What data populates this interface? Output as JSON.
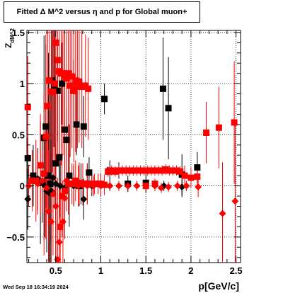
{
  "chart_data": {
    "type": "scatter",
    "title": "Fitted Δ M^2 versus η and p for Global muon+",
    "xlabel": "p[GeV/c]",
    "ylabel": "Z_{dM^2}",
    "xlim": [
      0.18,
      2.55
    ],
    "ylim": [
      -0.75,
      1.52
    ],
    "x_ticks": [
      0.5,
      1,
      1.5,
      2,
      2.5
    ],
    "x_tick_labels": [
      "0.5",
      "1",
      "1.5",
      "2",
      "2.5"
    ],
    "y_ticks": [
      -0.5,
      0,
      0.5,
      1,
      1.5
    ],
    "y_tick_labels": [
      "−0.5",
      "0",
      "0.5",
      "1",
      "1.5"
    ],
    "grid": true,
    "legend": "none",
    "series": [
      {
        "color": "#000000",
        "marker": "square",
        "points": [
          {
            "x": 0.19,
            "y": 0.27,
            "ey": 0.2
          },
          {
            "x": 0.25,
            "y": 0.1,
            "ey": 0.3
          },
          {
            "x": 0.33,
            "y": 0.03,
            "ey": 0.6
          },
          {
            "x": 0.37,
            "y": 0.47,
            "ey": 1.0
          },
          {
            "x": 0.39,
            "y": 0.58,
            "ey": 0.8
          },
          {
            "x": 0.42,
            "y": 0.1,
            "ey": 1.2
          },
          {
            "x": 0.44,
            "y": 0.02,
            "ey": 0.9
          },
          {
            "x": 0.46,
            "y": 1.03,
            "ey": 0.9
          },
          {
            "x": 0.48,
            "y": 0.98,
            "ey": 0.6
          },
          {
            "x": 0.5,
            "y": 0.22,
            "ey": 1.0
          },
          {
            "x": 0.52,
            "y": 0.93,
            "ey": 0.5
          },
          {
            "x": 0.54,
            "y": 0.28,
            "ey": 0.6
          },
          {
            "x": 0.57,
            "y": 1.0,
            "ey": 0.4
          },
          {
            "x": 0.6,
            "y": 0.55,
            "ey": 0.4
          },
          {
            "x": 0.62,
            "y": 0.45,
            "ey": 0.3
          },
          {
            "x": 0.65,
            "y": 0.1,
            "ey": 0.5
          },
          {
            "x": 0.7,
            "y": 0.93,
            "ey": 0.3
          },
          {
            "x": 0.73,
            "y": 0.6,
            "ey": 0.3
          },
          {
            "x": 0.76,
            "y": 0.0,
            "ey": 0.2
          },
          {
            "x": 0.78,
            "y": 0.02,
            "ey": 0.2
          },
          {
            "x": 0.81,
            "y": 0.58,
            "ey": 0.3
          },
          {
            "x": 0.85,
            "y": 0.02,
            "ey": 0.2
          },
          {
            "x": 0.87,
            "y": 0.13,
            "ey": 0.15
          },
          {
            "x": 1.04,
            "y": 0.85,
            "ey": 0.15
          },
          {
            "x": 1.1,
            "y": 0.15,
            "ey": 0.1
          },
          {
            "x": 1.2,
            "y": 0.15,
            "ey": 0.08
          },
          {
            "x": 1.3,
            "y": 0.02,
            "ey": 0.08
          },
          {
            "x": 1.5,
            "y": 0.03,
            "ey": 0.1
          },
          {
            "x": 1.69,
            "y": 0.95,
            "ey": 0.5
          },
          {
            "x": 1.75,
            "y": 0.76,
            "ey": 0.5
          },
          {
            "x": 1.9,
            "y": 0.11,
            "ey": 0.2
          },
          {
            "x": 2.07,
            "y": 0.18,
            "ey": 0.15
          }
        ]
      },
      {
        "color": "#000000",
        "marker": "diamond",
        "points": [
          {
            "x": 0.19,
            "y": -0.13,
            "ey": 0.3
          },
          {
            "x": 0.3,
            "y": 0.07,
            "ey": 0.3
          },
          {
            "x": 0.35,
            "y": 0.04,
            "ey": 0.4
          },
          {
            "x": 0.38,
            "y": 0.0,
            "ey": 0.5
          },
          {
            "x": 0.4,
            "y": -0.05,
            "ey": 0.6
          },
          {
            "x": 0.43,
            "y": -0.07,
            "ey": 0.8
          },
          {
            "x": 0.45,
            "y": -0.05,
            "ey": 0.5
          },
          {
            "x": 0.47,
            "y": 0.08,
            "ey": 0.4
          },
          {
            "x": 0.5,
            "y": 0.02,
            "ey": 0.4
          },
          {
            "x": 0.55,
            "y": 0.0,
            "ey": 0.3
          },
          {
            "x": 0.6,
            "y": -0.02,
            "ey": 0.3
          },
          {
            "x": 0.7,
            "y": 0.0,
            "ey": 0.2
          },
          {
            "x": 0.81,
            "y": -0.13,
            "ey": 0.2
          },
          {
            "x": 0.9,
            "y": 0.0,
            "ey": 0.1
          },
          {
            "x": 1.1,
            "y": 0.0,
            "ey": 0.05
          },
          {
            "x": 1.3,
            "y": 0.0,
            "ey": 0.05
          },
          {
            "x": 1.5,
            "y": 0.0,
            "ey": 0.05
          },
          {
            "x": 1.7,
            "y": 0.0,
            "ey": 0.05
          },
          {
            "x": 1.9,
            "y": -0.01,
            "ey": 0.1
          }
        ]
      },
      {
        "color": "#ff0000",
        "marker": "square",
        "points": [
          {
            "x": 0.19,
            "y": 0.77,
            "ey": 0.5
          },
          {
            "x": 0.24,
            "y": 0.05,
            "ey": 0.3
          },
          {
            "x": 0.28,
            "y": 0.05,
            "ey": 0.4
          },
          {
            "x": 0.33,
            "y": 0.2,
            "ey": 0.5
          },
          {
            "x": 0.37,
            "y": 0.12,
            "ey": 0.8
          },
          {
            "x": 0.39,
            "y": 0.48,
            "ey": 1.0
          },
          {
            "x": 0.41,
            "y": 0.78,
            "ey": 1.0
          },
          {
            "x": 0.43,
            "y": 1.03,
            "ey": 1.1
          },
          {
            "x": 0.45,
            "y": 0.92,
            "ey": 1.2
          },
          {
            "x": 0.47,
            "y": 0.92,
            "ey": 0.9
          },
          {
            "x": 0.49,
            "y": 1.0,
            "ey": 1.2
          },
          {
            "x": 0.5,
            "y": 1.4,
            "ey": 1.4
          },
          {
            "x": 0.52,
            "y": 1.23,
            "ey": 1.0
          },
          {
            "x": 0.54,
            "y": 1.12,
            "ey": 0.9
          },
          {
            "x": 0.56,
            "y": 1.1,
            "ey": 0.9
          },
          {
            "x": 0.58,
            "y": 1.1,
            "ey": 0.8
          },
          {
            "x": 0.6,
            "y": 1.08,
            "ey": 0.8
          },
          {
            "x": 0.62,
            "y": 1.05,
            "ey": 0.8
          },
          {
            "x": 0.64,
            "y": 1.1,
            "ey": 0.8
          },
          {
            "x": 0.66,
            "y": 0.98,
            "ey": 0.7
          },
          {
            "x": 0.68,
            "y": 1.07,
            "ey": 0.7
          },
          {
            "x": 0.7,
            "y": 0.93,
            "ey": 0.7
          },
          {
            "x": 0.72,
            "y": 1.03,
            "ey": 0.7
          },
          {
            "x": 0.74,
            "y": 0.97,
            "ey": 0.6
          },
          {
            "x": 0.76,
            "y": 1.02,
            "ey": 0.6
          },
          {
            "x": 0.79,
            "y": 0.97,
            "ey": 0.6
          },
          {
            "x": 0.83,
            "y": 0.98,
            "ey": 0.5
          },
          {
            "x": 0.86,
            "y": 0.95,
            "ey": 0.5
          },
          {
            "x": 0.55,
            "y": -0.4,
            "ey": 0.4
          },
          {
            "x": 0.57,
            "y": -0.1,
            "ey": 0.4
          },
          {
            "x": 0.6,
            "y": -0.05,
            "ey": 0.3
          },
          {
            "x": 0.64,
            "y": 0.02,
            "ey": 0.3
          },
          {
            "x": 0.68,
            "y": 0.02,
            "ey": 0.2
          },
          {
            "x": 0.72,
            "y": 0.05,
            "ey": 0.2
          },
          {
            "x": 0.76,
            "y": 0.03,
            "ey": 0.2
          },
          {
            "x": 0.8,
            "y": 0.02,
            "ey": 0.2
          },
          {
            "x": 0.85,
            "y": 0.02,
            "ey": 0.2
          },
          {
            "x": 0.9,
            "y": 0.02,
            "ey": 0.1
          },
          {
            "x": 0.93,
            "y": 0.02,
            "ey": 0.1
          },
          {
            "x": 0.97,
            "y": 0.02,
            "ey": 0.1
          },
          {
            "x": 1.0,
            "y": 0.02,
            "ey": 0.1
          },
          {
            "x": 1.04,
            "y": 0.01,
            "ey": 0.1
          },
          {
            "x": 1.08,
            "y": 0.14,
            "ey": 0.05
          },
          {
            "x": 1.12,
            "y": 0.15,
            "ey": 0.05
          },
          {
            "x": 1.16,
            "y": 0.14,
            "ey": 0.05
          },
          {
            "x": 1.2,
            "y": 0.15,
            "ey": 0.05
          },
          {
            "x": 1.24,
            "y": 0.15,
            "ey": 0.05
          },
          {
            "x": 1.28,
            "y": 0.15,
            "ey": 0.05
          },
          {
            "x": 1.32,
            "y": 0.15,
            "ey": 0.05
          },
          {
            "x": 1.36,
            "y": 0.15,
            "ey": 0.05
          },
          {
            "x": 1.4,
            "y": 0.15,
            "ey": 0.05
          },
          {
            "x": 1.44,
            "y": 0.15,
            "ey": 0.05
          },
          {
            "x": 1.48,
            "y": 0.15,
            "ey": 0.05
          },
          {
            "x": 1.52,
            "y": 0.15,
            "ey": 0.05
          },
          {
            "x": 1.56,
            "y": 0.15,
            "ey": 0.05
          },
          {
            "x": 1.6,
            "y": 0.15,
            "ey": 0.05
          },
          {
            "x": 1.64,
            "y": 0.15,
            "ey": 0.05
          },
          {
            "x": 1.68,
            "y": 0.15,
            "ey": 0.05
          },
          {
            "x": 1.72,
            "y": 0.16,
            "ey": 0.05
          },
          {
            "x": 1.76,
            "y": 0.15,
            "ey": 0.05
          },
          {
            "x": 1.8,
            "y": 0.15,
            "ey": 0.05
          },
          {
            "x": 1.84,
            "y": 0.15,
            "ey": 0.05
          },
          {
            "x": 1.88,
            "y": 0.14,
            "ey": 0.05
          },
          {
            "x": 1.93,
            "y": 0.1,
            "ey": 0.1
          },
          {
            "x": 2.0,
            "y": 0.08,
            "ey": 0.1
          },
          {
            "x": 2.07,
            "y": 0.09,
            "ey": 0.1
          },
          {
            "x": 1.5,
            "y": 0.0,
            "ey": 0.05
          },
          {
            "x": 1.6,
            "y": 0.02,
            "ey": 0.05
          },
          {
            "x": 2.17,
            "y": 0.52,
            "ey": 0.3
          },
          {
            "x": 2.31,
            "y": 0.57,
            "ey": 0.4
          },
          {
            "x": 2.48,
            "y": 0.62,
            "ey": 0.6
          }
        ]
      },
      {
        "color": "#ff0000",
        "marker": "diamond",
        "points": [
          {
            "x": 0.2,
            "y": 0.0,
            "ey": 0.2
          },
          {
            "x": 0.3,
            "y": 0.02,
            "ey": 0.3
          },
          {
            "x": 0.35,
            "y": 0.05,
            "ey": 0.3
          },
          {
            "x": 0.4,
            "y": -0.02,
            "ey": 0.5
          },
          {
            "x": 0.42,
            "y": -0.25,
            "ey": 0.6
          },
          {
            "x": 0.45,
            "y": -0.35,
            "ey": 0.8
          },
          {
            "x": 0.47,
            "y": -0.08,
            "ey": 0.6
          },
          {
            "x": 0.5,
            "y": -0.2,
            "ey": 0.6
          },
          {
            "x": 0.52,
            "y": -0.72,
            "ey": 0.8
          },
          {
            "x": 0.54,
            "y": -0.55,
            "ey": 0.6
          },
          {
            "x": 0.58,
            "y": -0.35,
            "ey": 0.4
          },
          {
            "x": 0.6,
            "y": -0.12,
            "ey": 0.4
          },
          {
            "x": 0.62,
            "y": 0.05,
            "ey": 0.3
          },
          {
            "x": 0.7,
            "y": 0.02,
            "ey": 0.2
          },
          {
            "x": 0.75,
            "y": 0.0,
            "ey": 0.2
          },
          {
            "x": 0.8,
            "y": 0.01,
            "ey": 0.2
          },
          {
            "x": 0.85,
            "y": 0.0,
            "ey": 0.1
          },
          {
            "x": 0.92,
            "y": 0.0,
            "ey": 0.1
          },
          {
            "x": 1.0,
            "y": 0.0,
            "ey": 0.1
          },
          {
            "x": 1.1,
            "y": 0.0,
            "ey": 0.05
          },
          {
            "x": 1.2,
            "y": 0.0,
            "ey": 0.05
          },
          {
            "x": 1.3,
            "y": 0.0,
            "ey": 0.05
          },
          {
            "x": 1.4,
            "y": 0.0,
            "ey": 0.05
          },
          {
            "x": 1.5,
            "y": 0.0,
            "ey": 0.05
          },
          {
            "x": 1.6,
            "y": 0.0,
            "ey": 0.05
          },
          {
            "x": 1.67,
            "y": -0.02,
            "ey": 0.05
          },
          {
            "x": 1.75,
            "y": -0.01,
            "ey": 0.05
          },
          {
            "x": 1.85,
            "y": 0.0,
            "ey": 0.05
          },
          {
            "x": 1.95,
            "y": 0.0,
            "ey": 0.05
          },
          {
            "x": 2.08,
            "y": -0.01,
            "ey": 0.1
          },
          {
            "x": 2.35,
            "y": -0.27,
            "ey": 0.5
          },
          {
            "x": 2.49,
            "y": -0.15,
            "ey": 0.8
          }
        ]
      }
    ]
  },
  "footer": {
    "date": "Wed Sep 18 16:34:19 2024"
  }
}
